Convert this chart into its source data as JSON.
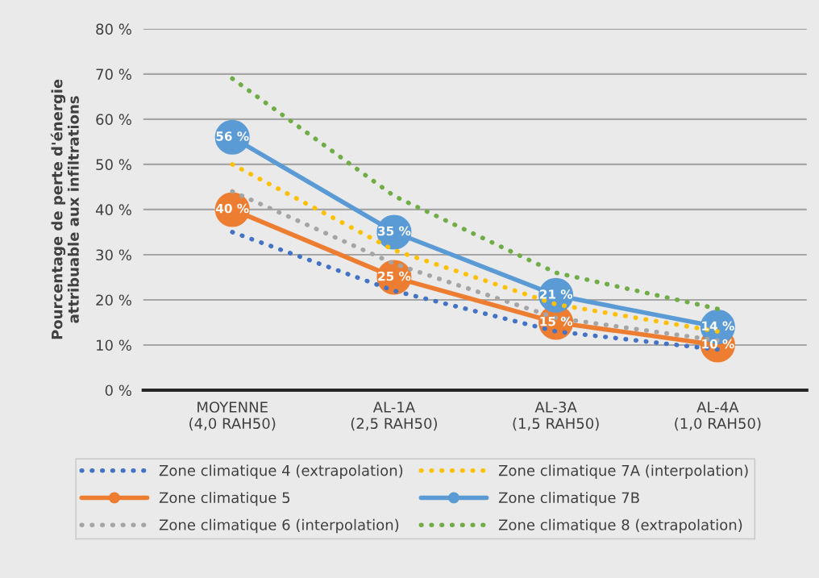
{
  "chart_data": {
    "type": "line",
    "ylabel": "Pourcentage de perte d'énergie\nattribuable aux infiltrations",
    "categories": [
      "MOYENNE\n(4,0 RAH50)",
      "AL-1A\n(2,5 RAH50)",
      "AL-3A\n(1,5 RAH50)",
      "AL-4A\n(1,0 RAH50)"
    ],
    "series": [
      {
        "name": "Zone climatique 4 (extrapolation)",
        "color": "#4472c4",
        "values": [
          35,
          22,
          13,
          9
        ],
        "line_style": "dotted",
        "marker": "none"
      },
      {
        "name": "Zone climatique 5",
        "color": "#ed7d31",
        "values": [
          40,
          25,
          15,
          10
        ],
        "line_style": "solid",
        "marker": "circle",
        "value_labels": [
          "40 %",
          "25 %",
          "15 %",
          "10 %"
        ]
      },
      {
        "name": "Zone climatique 6 (interpolation)",
        "color": "#a5a5a5",
        "values": [
          44,
          28,
          16,
          11
        ],
        "line_style": "dotted",
        "marker": "none"
      },
      {
        "name": "Zone climatique 7A (interpolation)",
        "color": "#ffc000",
        "values": [
          50,
          31,
          19,
          13
        ],
        "line_style": "dotted",
        "marker": "none"
      },
      {
        "name": "Zone climatique 7B",
        "color": "#5b9bd5",
        "values": [
          56,
          35,
          21,
          14
        ],
        "line_style": "solid",
        "marker": "circle",
        "value_labels": [
          "56 %",
          "35 %",
          "21 %",
          "14 %"
        ]
      },
      {
        "name": "Zone climatique 8 (extrapolation)",
        "color": "#70ad47",
        "values": [
          69,
          43,
          26,
          18
        ],
        "line_style": "dotted",
        "marker": "none"
      }
    ],
    "ylim": [
      0,
      80
    ],
    "yticks": [
      {
        "value": 0,
        "label": "0 %"
      },
      {
        "value": 10,
        "label": "10 %"
      },
      {
        "value": 20,
        "label": "20 %"
      },
      {
        "value": 30,
        "label": "30 %"
      },
      {
        "value": 40,
        "label": "40 %"
      },
      {
        "value": 50,
        "label": "50 %"
      },
      {
        "value": 60,
        "label": "60 %"
      },
      {
        "value": 70,
        "label": "70 %"
      },
      {
        "value": 80,
        "label": "80 %"
      }
    ],
    "grid": "y",
    "legend": "bottom"
  }
}
